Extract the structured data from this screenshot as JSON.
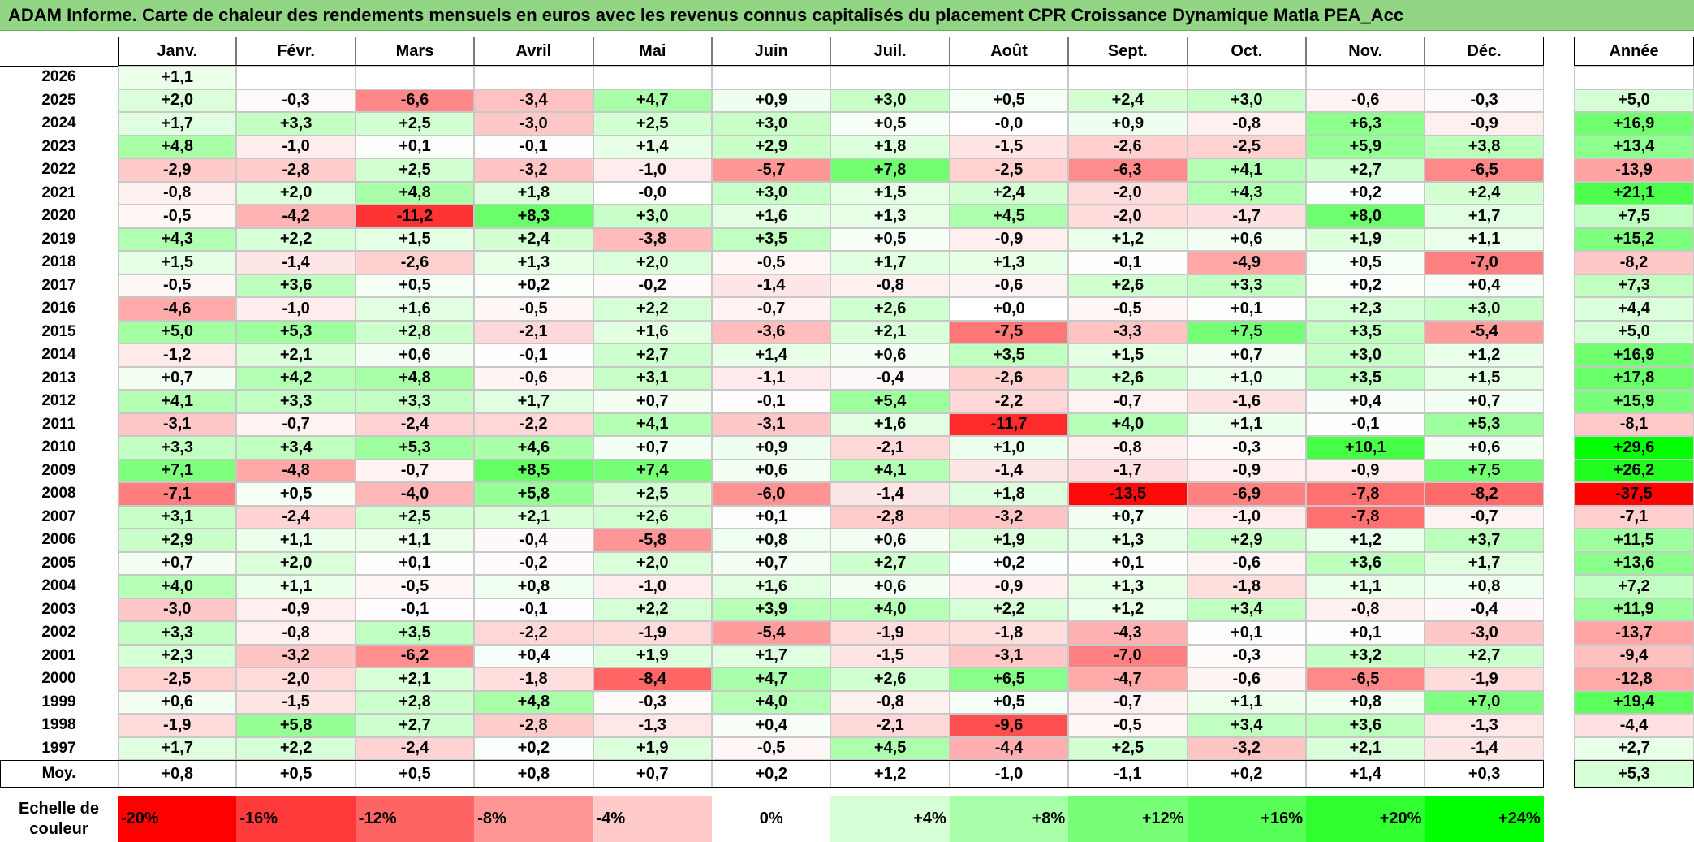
{
  "title": "ADAM Informe. Carte de chaleur des rendements mensuels en euros avec les revenus connus capitalisés du placement CPR Croissance Dynamique Matla PEA_Acc",
  "months": [
    "Janv.",
    "Févr.",
    "Mars",
    "Avril",
    "Mai",
    "Juin",
    "Juil.",
    "Août",
    "Sept.",
    "Oct.",
    "Nov.",
    "Déc."
  ],
  "annee_label": "Année",
  "moy_label": "Moy.",
  "scale_label": "Echelle de couleur",
  "chart_data": {
    "type": "heatmap",
    "title": "ADAM Informe. Carte de chaleur des rendements mensuels en euros avec les revenus connus capitalisés du placement CPR Croissance Dynamique Matla PEA_Acc",
    "columns": [
      "Janv.",
      "Févr.",
      "Mars",
      "Avril",
      "Mai",
      "Juin",
      "Juil.",
      "Août",
      "Sept.",
      "Oct.",
      "Nov.",
      "Déc."
    ],
    "rows": [
      {
        "year": "2026",
        "values": [
          1.1,
          null,
          null,
          null,
          null,
          null,
          null,
          null,
          null,
          null,
          null,
          null
        ],
        "annee": null
      },
      {
        "year": "2025",
        "values": [
          2.0,
          -0.3,
          -6.6,
          -3.4,
          4.7,
          0.9,
          3.0,
          0.5,
          2.4,
          3.0,
          -0.6,
          -0.3
        ],
        "annee": 5.0
      },
      {
        "year": "2024",
        "values": [
          1.7,
          3.3,
          2.5,
          -3.0,
          2.5,
          3.0,
          0.5,
          -0.0,
          0.9,
          -0.8,
          6.3,
          -0.9
        ],
        "annee": 16.9
      },
      {
        "year": "2023",
        "values": [
          4.8,
          -1.0,
          0.1,
          -0.1,
          1.4,
          2.9,
          1.8,
          -1.5,
          -2.6,
          -2.5,
          5.9,
          3.8
        ],
        "annee": 13.4
      },
      {
        "year": "2022",
        "values": [
          -2.9,
          -2.8,
          2.5,
          -3.2,
          -1.0,
          -5.7,
          7.8,
          -2.5,
          -6.3,
          4.1,
          2.7,
          -6.5
        ],
        "annee": -13.9
      },
      {
        "year": "2021",
        "values": [
          -0.8,
          2.0,
          4.8,
          1.8,
          -0.0,
          3.0,
          1.5,
          2.4,
          -2.0,
          4.3,
          0.2,
          2.4
        ],
        "annee": 21.1
      },
      {
        "year": "2020",
        "values": [
          -0.5,
          -4.2,
          -11.2,
          8.3,
          3.0,
          1.6,
          1.3,
          4.5,
          -2.0,
          -1.7,
          8.0,
          1.7
        ],
        "annee": 7.5
      },
      {
        "year": "2019",
        "values": [
          4.3,
          2.2,
          1.5,
          2.4,
          -3.8,
          3.5,
          0.5,
          -0.9,
          1.2,
          0.6,
          1.9,
          1.1
        ],
        "annee": 15.2
      },
      {
        "year": "2018",
        "values": [
          1.5,
          -1.4,
          -2.6,
          1.3,
          2.0,
          -0.5,
          1.7,
          1.3,
          -0.1,
          -4.9,
          0.5,
          -7.0
        ],
        "annee": -8.2
      },
      {
        "year": "2017",
        "values": [
          -0.5,
          3.6,
          0.5,
          0.2,
          -0.2,
          -1.4,
          -0.8,
          -0.6,
          2.6,
          3.3,
          0.2,
          0.4
        ],
        "annee": 7.3
      },
      {
        "year": "2016",
        "values": [
          -4.6,
          -1.0,
          1.6,
          -0.5,
          2.2,
          -0.7,
          2.6,
          0.0,
          -0.5,
          0.1,
          2.3,
          3.0
        ],
        "annee": 4.4
      },
      {
        "year": "2015",
        "values": [
          5.0,
          5.3,
          2.8,
          -2.1,
          1.6,
          -3.6,
          2.1,
          -7.5,
          -3.3,
          7.5,
          3.5,
          -5.4
        ],
        "annee": 5.0
      },
      {
        "year": "2014",
        "values": [
          -1.2,
          2.1,
          0.6,
          -0.1,
          2.7,
          1.4,
          0.6,
          3.5,
          1.5,
          0.7,
          3.0,
          1.2
        ],
        "annee": 16.9
      },
      {
        "year": "2013",
        "values": [
          0.7,
          4.2,
          4.8,
          -0.6,
          3.1,
          -1.1,
          -0.4,
          -2.6,
          2.6,
          1.0,
          3.5,
          1.5
        ],
        "annee": 17.8
      },
      {
        "year": "2012",
        "values": [
          4.1,
          3.3,
          3.3,
          1.7,
          0.7,
          -0.1,
          5.4,
          -2.2,
          -0.7,
          -1.6,
          0.4,
          0.7
        ],
        "annee": 15.9
      },
      {
        "year": "2011",
        "values": [
          -3.1,
          -0.7,
          -2.4,
          -2.2,
          4.1,
          -3.1,
          1.6,
          -11.7,
          4.0,
          1.1,
          -0.1,
          5.3
        ],
        "annee": -8.1
      },
      {
        "year": "2010",
        "values": [
          3.3,
          3.4,
          5.3,
          4.6,
          0.7,
          0.9,
          -2.1,
          1.0,
          -0.8,
          -0.3,
          10.1,
          0.6
        ],
        "annee": 29.6
      },
      {
        "year": "2009",
        "values": [
          7.1,
          -4.8,
          -0.7,
          8.5,
          7.4,
          0.6,
          4.1,
          -1.4,
          -1.7,
          -0.9,
          -0.9,
          7.5
        ],
        "annee": 26.2
      },
      {
        "year": "2008",
        "values": [
          -7.1,
          0.5,
          -4.0,
          5.8,
          2.5,
          -6.0,
          -1.4,
          1.8,
          -13.5,
          -6.9,
          -7.8,
          -8.2
        ],
        "annee": -37.5
      },
      {
        "year": "2007",
        "values": [
          3.1,
          -2.4,
          2.5,
          2.1,
          2.6,
          0.1,
          -2.8,
          -3.2,
          0.7,
          -1.0,
          -7.8,
          -0.7
        ],
        "annee": -7.1
      },
      {
        "year": "2006",
        "values": [
          2.9,
          1.1,
          1.1,
          -0.4,
          -5.8,
          0.8,
          0.6,
          1.9,
          1.3,
          2.9,
          1.2,
          3.7
        ],
        "annee": 11.5
      },
      {
        "year": "2005",
        "values": [
          0.7,
          2.0,
          0.1,
          -0.2,
          2.0,
          0.7,
          2.7,
          0.2,
          0.1,
          -0.6,
          3.6,
          1.7
        ],
        "annee": 13.6
      },
      {
        "year": "2004",
        "values": [
          4.0,
          1.1,
          -0.5,
          0.8,
          -1.0,
          1.6,
          0.6,
          -0.9,
          1.3,
          -1.8,
          1.1,
          0.8
        ],
        "annee": 7.2
      },
      {
        "year": "2003",
        "values": [
          -3.0,
          -0.9,
          -0.1,
          -0.1,
          2.2,
          3.9,
          4.0,
          2.2,
          1.2,
          3.4,
          -0.8,
          -0.4
        ],
        "annee": 11.9
      },
      {
        "year": "2002",
        "values": [
          3.3,
          -0.8,
          3.5,
          -2.2,
          -1.9,
          -5.4,
          -1.9,
          -1.8,
          -4.3,
          0.1,
          0.1,
          -3.0
        ],
        "annee": -13.7
      },
      {
        "year": "2001",
        "values": [
          2.3,
          -3.2,
          -6.2,
          0.4,
          1.9,
          1.7,
          -1.5,
          -3.1,
          -7.0,
          -0.3,
          3.2,
          2.7
        ],
        "annee": -9.4
      },
      {
        "year": "2000",
        "values": [
          -2.5,
          -2.0,
          2.1,
          -1.8,
          -8.4,
          4.7,
          2.6,
          6.5,
          -4.7,
          -0.6,
          -6.5,
          -1.9
        ],
        "annee": -12.8
      },
      {
        "year": "1999",
        "values": [
          0.6,
          -1.5,
          2.8,
          4.8,
          -0.3,
          4.0,
          -0.8,
          0.5,
          -0.7,
          1.1,
          0.8,
          7.0
        ],
        "annee": 19.4
      },
      {
        "year": "1998",
        "values": [
          -1.9,
          5.8,
          2.7,
          -2.8,
          -1.3,
          0.4,
          -2.1,
          -9.6,
          -0.5,
          3.4,
          3.6,
          -1.3
        ],
        "annee": -4.4
      },
      {
        "year": "1997",
        "values": [
          1.7,
          2.2,
          -2.4,
          0.2,
          1.9,
          -0.5,
          4.5,
          -4.4,
          2.5,
          -3.2,
          2.1,
          -1.4
        ],
        "annee": 2.7
      }
    ],
    "moyenne": {
      "values": [
        0.8,
        0.5,
        0.5,
        0.8,
        0.7,
        0.2,
        1.2,
        -1.0,
        -1.1,
        0.2,
        1.4,
        0.3
      ],
      "annee": 5.3
    },
    "color_scale": [
      {
        "label": "-20%",
        "value": -20,
        "color": "#ff0000"
      },
      {
        "label": "-16%",
        "value": -16,
        "color": "#ff3a3a"
      },
      {
        "label": "-12%",
        "value": -12,
        "color": "#ff6464"
      },
      {
        "label": "-8%",
        "value": -8,
        "color": "#ff9696"
      },
      {
        "label": "-4%",
        "value": -4,
        "color": "#ffcaca"
      },
      {
        "label": "0%",
        "value": 0,
        "color": "#ffffff"
      },
      {
        "label": "+4%",
        "value": 4,
        "color": "#d6ffd6"
      },
      {
        "label": "+8%",
        "value": 8,
        "color": "#aaffaa"
      },
      {
        "label": "+12%",
        "value": 12,
        "color": "#78ff78"
      },
      {
        "label": "+16%",
        "value": 16,
        "color": "#58ff58"
      },
      {
        "label": "+20%",
        "value": 20,
        "color": "#30ff30"
      },
      {
        "label": "+24%",
        "value": 24,
        "color": "#00ff00"
      }
    ]
  }
}
